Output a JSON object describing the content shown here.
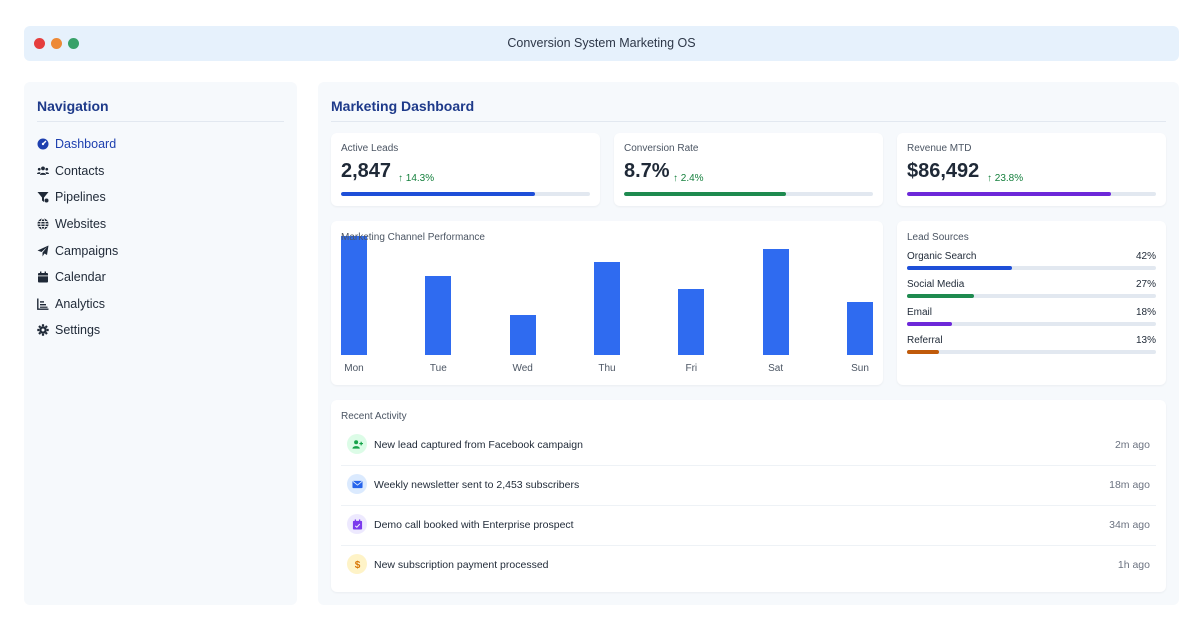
{
  "window": {
    "title": "Conversion System Marketing OS",
    "dots": [
      "#e53e3e",
      "#ed8936",
      "#38a169"
    ]
  },
  "sidebar": {
    "heading": "Navigation",
    "items": [
      {
        "label": "Dashboard",
        "icon": "dashboard-icon",
        "active": true
      },
      {
        "label": "Contacts",
        "icon": "users-icon",
        "active": false
      },
      {
        "label": "Pipelines",
        "icon": "funnel-icon",
        "active": false
      },
      {
        "label": "Websites",
        "icon": "globe-icon",
        "active": false
      },
      {
        "label": "Campaigns",
        "icon": "paper-plane-icon",
        "active": false
      },
      {
        "label": "Calendar",
        "icon": "calendar-icon",
        "active": false
      },
      {
        "label": "Analytics",
        "icon": "chart-icon",
        "active": false
      },
      {
        "label": "Settings",
        "icon": "gear-icon",
        "active": false
      }
    ]
  },
  "main": {
    "heading": "Marketing Dashboard",
    "kpis": [
      {
        "label": "Active Leads",
        "value": "2,847",
        "delta": "↑ 14.3%",
        "progress": 0.78,
        "color": "#1e4fd8"
      },
      {
        "label": "Conversion Rate",
        "value": "8.7%",
        "delta": "↑ 2.4%",
        "progress": 0.65,
        "color": "#1e8a4f"
      },
      {
        "label": "Revenue MTD",
        "value": "$86,492",
        "delta": "↑ 23.8%",
        "progress": 0.82,
        "color": "#6d28d9"
      }
    ],
    "lead_sources": {
      "title": "Lead Sources",
      "items": [
        {
          "name": "Organic Search",
          "pct": "42%",
          "value": 0.42,
          "color": "#1e4fd8"
        },
        {
          "name": "Social Media",
          "pct": "27%",
          "value": 0.27,
          "color": "#1e8a4f"
        },
        {
          "name": "Email",
          "pct": "18%",
          "value": 0.18,
          "color": "#6d28d9"
        },
        {
          "name": "Referral",
          "pct": "13%",
          "value": 0.13,
          "color": "#c05a0a"
        }
      ]
    },
    "activity": {
      "title": "Recent Activity",
      "items": [
        {
          "text": "New lead captured from Facebook campaign",
          "time": "2m ago",
          "icon": "user-plus-icon",
          "bg": "#dcfce7",
          "fg": "#16a34a"
        },
        {
          "text": "Weekly newsletter sent to 2,453 subscribers",
          "time": "18m ago",
          "icon": "envelope-icon",
          "bg": "#dbeafe",
          "fg": "#2563eb"
        },
        {
          "text": "Demo call booked with Enterprise prospect",
          "time": "34m ago",
          "icon": "calendar-check-icon",
          "bg": "#ede9fe",
          "fg": "#7c3aed"
        },
        {
          "text": "New subscription payment processed",
          "time": "1h ago",
          "icon": "dollar-icon",
          "bg": "#fef3c7",
          "fg": "#d97706"
        }
      ]
    }
  },
  "chart_data": {
    "type": "bar",
    "title": "Marketing Channel Performance",
    "categories": [
      "Mon",
      "Tue",
      "Wed",
      "Thu",
      "Fri",
      "Sat",
      "Sun"
    ],
    "values": [
      90,
      60,
      30,
      70,
      50,
      80,
      40
    ],
    "ylim": [
      0,
      90
    ],
    "color": "#2f6bf0",
    "grid": false
  }
}
